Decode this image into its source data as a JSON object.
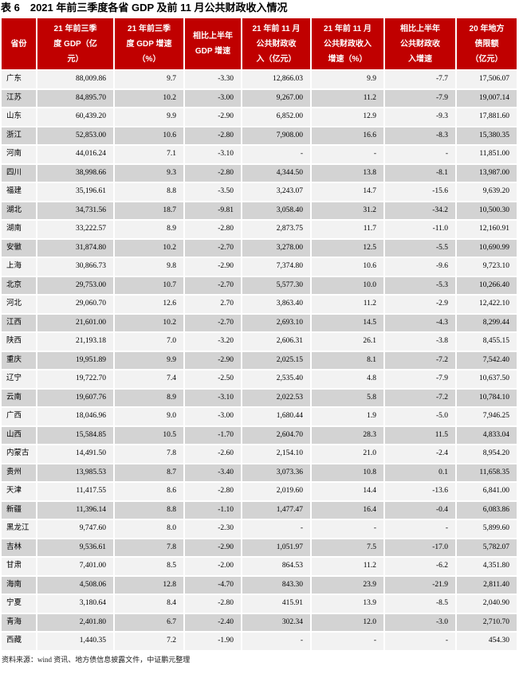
{
  "page": {
    "title": "表 6　2021 年前三季度各省 GDP 及前 11 月公共财政收入情况",
    "source_note": "资料来源：wind 资讯、地方债信息披露文件，中证鹏元整理"
  },
  "colors": {
    "header_bg": "#c00000",
    "header_text": "#ffffff",
    "row_light": "#f2f2f2",
    "row_dark": "#d3d3d3",
    "title_text": "#000000"
  },
  "chart_data": {
    "type": "table",
    "title": "2021 年前三季度各省 GDP 及前 11 月公共财政收入情况",
    "columns": [
      "省份",
      "21 年前三季\n度 GDP（亿\n元）",
      "21 年前三季\n度 GDP 增速\n（%）",
      "相比上半年\nGDP 增速",
      "21 年前 11 月\n公共财政收\n入（亿元）",
      "21 年前 11 月\n公共财政收入\n增速（%）",
      "相比上半年\n公共财政收\n入增速",
      "20 年地方\n债限额\n（亿元）"
    ],
    "rows": [
      [
        "广东",
        "88,009.86",
        "9.7",
        "-3.30",
        "12,866.03",
        "9.9",
        "-7.7",
        "17,506.07"
      ],
      [
        "江苏",
        "84,895.70",
        "10.2",
        "-3.00",
        "9,267.00",
        "11.2",
        "-7.9",
        "19,007.14"
      ],
      [
        "山东",
        "60,439.20",
        "9.9",
        "-2.90",
        "6,852.00",
        "12.9",
        "-9.3",
        "17,881.60"
      ],
      [
        "浙江",
        "52,853.00",
        "10.6",
        "-2.80",
        "7,908.00",
        "16.6",
        "-8.3",
        "15,380.35"
      ],
      [
        "河南",
        "44,016.24",
        "7.1",
        "-3.10",
        "-",
        "-",
        "-",
        "11,851.00"
      ],
      [
        "四川",
        "38,998.66",
        "9.3",
        "-2.80",
        "4,344.50",
        "13.8",
        "-8.1",
        "13,987.00"
      ],
      [
        "福建",
        "35,196.61",
        "8.8",
        "-3.50",
        "3,243.07",
        "14.7",
        "-15.6",
        "9,639.20"
      ],
      [
        "湖北",
        "34,731.56",
        "18.7",
        "-9.81",
        "3,058.40",
        "31.2",
        "-34.2",
        "10,500.30"
      ],
      [
        "湖南",
        "33,222.57",
        "8.9",
        "-2.80",
        "2,873.75",
        "11.7",
        "-11.0",
        "12,160.91"
      ],
      [
        "安徽",
        "31,874.80",
        "10.2",
        "-2.70",
        "3,278.00",
        "12.5",
        "-5.5",
        "10,690.99"
      ],
      [
        "上海",
        "30,866.73",
        "9.8",
        "-2.90",
        "7,374.80",
        "10.6",
        "-9.6",
        "9,723.10"
      ],
      [
        "北京",
        "29,753.00",
        "10.7",
        "-2.70",
        "5,577.30",
        "10.0",
        "-5.3",
        "10,266.40"
      ],
      [
        "河北",
        "29,060.70",
        "12.6",
        "2.70",
        "3,863.40",
        "11.2",
        "-2.9",
        "12,422.10"
      ],
      [
        "江西",
        "21,601.00",
        "10.2",
        "-2.70",
        "2,693.10",
        "14.5",
        "-4.3",
        "8,299.44"
      ],
      [
        "陕西",
        "21,193.18",
        "7.0",
        "-3.20",
        "2,606.31",
        "26.1",
        "-3.8",
        "8,455.15"
      ],
      [
        "重庆",
        "19,951.89",
        "9.9",
        "-2.90",
        "2,025.15",
        "8.1",
        "-7.2",
        "7,542.40"
      ],
      [
        "辽宁",
        "19,722.70",
        "7.4",
        "-2.50",
        "2,535.40",
        "4.8",
        "-7.9",
        "10,637.50"
      ],
      [
        "云南",
        "19,607.76",
        "8.9",
        "-3.10",
        "2,022.53",
        "5.8",
        "-7.2",
        "10,784.10"
      ],
      [
        "广西",
        "18,046.96",
        "9.0",
        "-3.00",
        "1,680.44",
        "1.9",
        "-5.0",
        "7,946.25"
      ],
      [
        "山西",
        "15,584.85",
        "10.5",
        "-1.70",
        "2,604.70",
        "28.3",
        "11.5",
        "4,833.04"
      ],
      [
        "内蒙古",
        "14,491.50",
        "7.8",
        "-2.60",
        "2,154.10",
        "21.0",
        "-2.4",
        "8,954.20"
      ],
      [
        "贵州",
        "13,985.53",
        "8.7",
        "-3.40",
        "3,073.36",
        "10.8",
        "0.1",
        "11,658.35"
      ],
      [
        "天津",
        "11,417.55",
        "8.6",
        "-2.80",
        "2,019.60",
        "14.4",
        "-13.6",
        "6,841.00"
      ],
      [
        "新疆",
        "11,396.14",
        "8.8",
        "-1.10",
        "1,477.47",
        "16.4",
        "-0.4",
        "6,083.86"
      ],
      [
        "黑龙江",
        "9,747.60",
        "8.0",
        "-2.30",
        "-",
        "-",
        "-",
        "5,899.60"
      ],
      [
        "吉林",
        "9,536.61",
        "7.8",
        "-2.90",
        "1,051.97",
        "7.5",
        "-17.0",
        "5,782.07"
      ],
      [
        "甘肃",
        "7,401.00",
        "8.5",
        "-2.00",
        "864.53",
        "11.2",
        "-6.2",
        "4,351.80"
      ],
      [
        "海南",
        "4,508.06",
        "12.8",
        "-4.70",
        "843.30",
        "23.9",
        "-21.9",
        "2,811.40"
      ],
      [
        "宁夏",
        "3,180.64",
        "8.4",
        "-2.80",
        "415.91",
        "13.9",
        "-8.5",
        "2,040.90"
      ],
      [
        "青海",
        "2,401.80",
        "6.7",
        "-2.40",
        "302.34",
        "12.0",
        "-3.0",
        "2,710.70"
      ],
      [
        "西藏",
        "1,440.35",
        "7.2",
        "-1.90",
        "-",
        "-",
        "-",
        "454.30"
      ]
    ]
  }
}
